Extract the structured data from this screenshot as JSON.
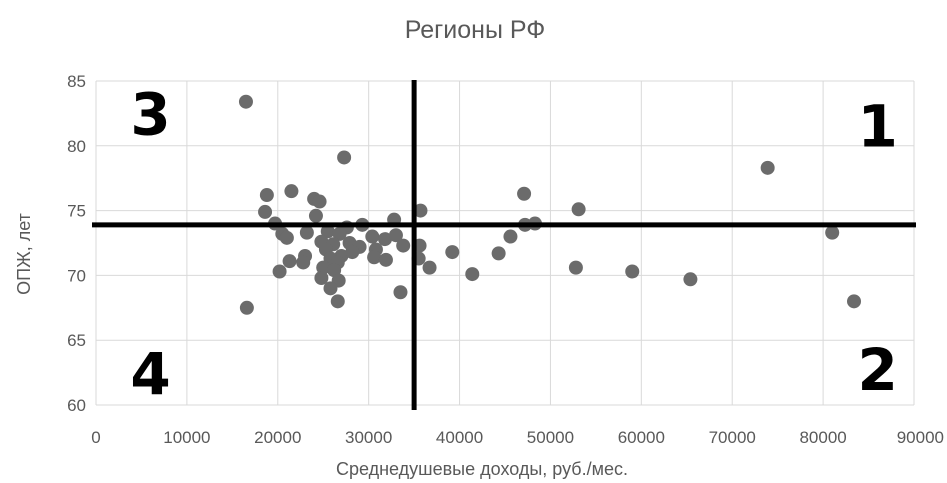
{
  "chart_data": {
    "type": "scatter",
    "title": "Регионы РФ",
    "xlabel": "Среднедушевые доходы, руб./мес.",
    "ylabel": "ОПЖ, лет",
    "xlim": [
      0,
      90000
    ],
    "ylim": [
      60,
      85
    ],
    "x_ticks": [
      0,
      10000,
      20000,
      30000,
      40000,
      50000,
      60000,
      70000,
      80000,
      90000
    ],
    "y_ticks": [
      60,
      65,
      70,
      75,
      80,
      85
    ],
    "grid": true,
    "marker_color": "#6b6b6b",
    "divider_color": "#000000",
    "dividers": {
      "vertical_x": 35000,
      "horizontal_y": 73.9
    },
    "quadrant_labels": [
      {
        "text": "1",
        "x": 86000,
        "y": 81.5
      },
      {
        "text": "2",
        "x": 86000,
        "y": 62.7
      },
      {
        "text": "3",
        "x": 6000,
        "y": 82.4
      },
      {
        "text": "4",
        "x": 6000,
        "y": 62.4
      }
    ],
    "points": [
      {
        "x": 16500,
        "y": 83.4
      },
      {
        "x": 27300,
        "y": 79.1
      },
      {
        "x": 73900,
        "y": 78.3
      },
      {
        "x": 21500,
        "y": 76.5
      },
      {
        "x": 18800,
        "y": 76.2
      },
      {
        "x": 47100,
        "y": 76.3
      },
      {
        "x": 24000,
        "y": 75.9
      },
      {
        "x": 24600,
        "y": 75.7
      },
      {
        "x": 18600,
        "y": 74.9
      },
      {
        "x": 24200,
        "y": 74.6
      },
      {
        "x": 53100,
        "y": 75.1
      },
      {
        "x": 35700,
        "y": 75.0
      },
      {
        "x": 19700,
        "y": 74.0
      },
      {
        "x": 32800,
        "y": 74.3
      },
      {
        "x": 29300,
        "y": 73.9
      },
      {
        "x": 27600,
        "y": 73.7
      },
      {
        "x": 47200,
        "y": 73.9
      },
      {
        "x": 48300,
        "y": 74.0
      },
      {
        "x": 81000,
        "y": 73.3
      },
      {
        "x": 20500,
        "y": 73.2
      },
      {
        "x": 23200,
        "y": 73.3
      },
      {
        "x": 25500,
        "y": 73.4
      },
      {
        "x": 26800,
        "y": 73.2
      },
      {
        "x": 30400,
        "y": 73.0
      },
      {
        "x": 31800,
        "y": 72.8
      },
      {
        "x": 33000,
        "y": 73.1
      },
      {
        "x": 45600,
        "y": 73.0
      },
      {
        "x": 21000,
        "y": 72.9
      },
      {
        "x": 24800,
        "y": 72.6
      },
      {
        "x": 26100,
        "y": 72.4
      },
      {
        "x": 27900,
        "y": 72.5
      },
      {
        "x": 29000,
        "y": 72.2
      },
      {
        "x": 30800,
        "y": 72.0
      },
      {
        "x": 33800,
        "y": 72.3
      },
      {
        "x": 35600,
        "y": 72.3
      },
      {
        "x": 25300,
        "y": 72.0
      },
      {
        "x": 27000,
        "y": 71.5
      },
      {
        "x": 28200,
        "y": 71.8
      },
      {
        "x": 30600,
        "y": 71.4
      },
      {
        "x": 39200,
        "y": 71.8
      },
      {
        "x": 44300,
        "y": 71.7
      },
      {
        "x": 23000,
        "y": 71.5
      },
      {
        "x": 21300,
        "y": 71.1
      },
      {
        "x": 22800,
        "y": 71.0
      },
      {
        "x": 25800,
        "y": 71.3
      },
      {
        "x": 26600,
        "y": 71.0
      },
      {
        "x": 31900,
        "y": 71.2
      },
      {
        "x": 35500,
        "y": 71.3
      },
      {
        "x": 25000,
        "y": 70.6
      },
      {
        "x": 26200,
        "y": 70.4
      },
      {
        "x": 36700,
        "y": 70.6
      },
      {
        "x": 52800,
        "y": 70.6
      },
      {
        "x": 20200,
        "y": 70.3
      },
      {
        "x": 24800,
        "y": 69.8
      },
      {
        "x": 26700,
        "y": 69.6
      },
      {
        "x": 41400,
        "y": 70.1
      },
      {
        "x": 59000,
        "y": 70.3
      },
      {
        "x": 65400,
        "y": 69.7
      },
      {
        "x": 25800,
        "y": 69.0
      },
      {
        "x": 33500,
        "y": 68.7
      },
      {
        "x": 26600,
        "y": 68.0
      },
      {
        "x": 83400,
        "y": 68.0
      },
      {
        "x": 16600,
        "y": 67.5
      }
    ]
  }
}
